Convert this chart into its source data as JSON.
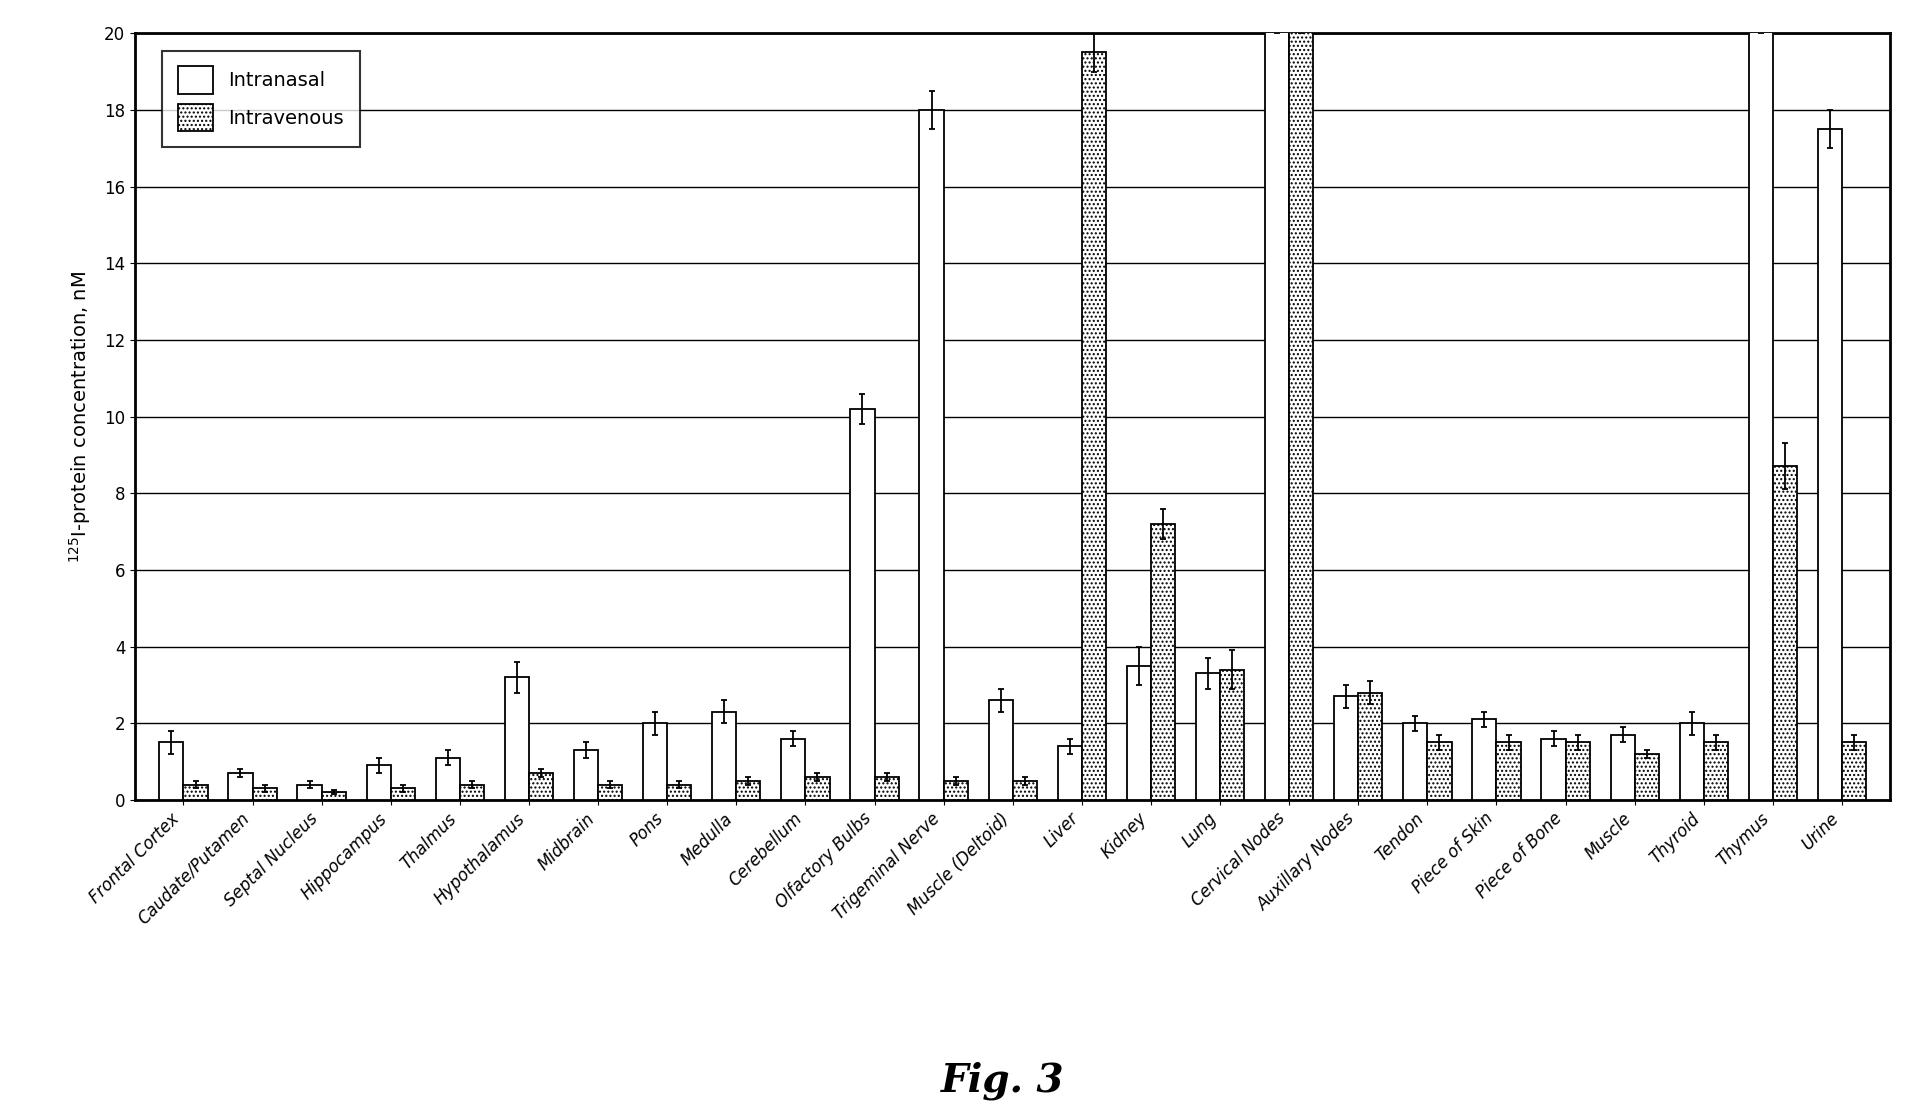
{
  "categories": [
    "Frontal Cortex",
    "Caudate/Putamen",
    "Septal Nucleus",
    "Hippocampus",
    "Thalmus",
    "Hypothalamus",
    "Midbrain",
    "Pons",
    "Medulla",
    "Cerebellum",
    "Olfactory Bulbs",
    "Trigeminal Nerve",
    "Muscle (Deltoid)",
    "Liver",
    "Kidney",
    "Lung",
    "Cervical Nodes",
    "Auxillary Nodes",
    "Tendon",
    "Piece of Skin",
    "Piece of Bone",
    "Muscle",
    "Thyroid",
    "Thymus",
    "Urine"
  ],
  "intranasal": [
    1.5,
    0.7,
    0.4,
    0.9,
    1.1,
    3.2,
    1.3,
    2.0,
    2.3,
    1.6,
    10.2,
    18.0,
    2.6,
    1.4,
    3.5,
    3.3,
    20.5,
    2.7,
    2.0,
    2.1,
    1.6,
    1.7,
    2.0,
    20.5,
    17.5
  ],
  "intravenous": [
    0.4,
    0.3,
    0.2,
    0.3,
    0.4,
    0.7,
    0.4,
    0.4,
    0.5,
    0.6,
    0.6,
    0.5,
    0.5,
    19.5,
    7.2,
    3.4,
    20.5,
    2.8,
    1.5,
    1.5,
    1.5,
    1.2,
    1.5,
    8.7,
    1.5
  ],
  "intranasal_err": [
    0.3,
    0.1,
    0.1,
    0.2,
    0.2,
    0.4,
    0.2,
    0.3,
    0.3,
    0.2,
    0.4,
    0.5,
    0.3,
    0.2,
    0.5,
    0.4,
    0.5,
    0.3,
    0.2,
    0.2,
    0.2,
    0.2,
    0.3,
    0.5,
    0.5
  ],
  "intravenous_err": [
    0.1,
    0.1,
    0.05,
    0.1,
    0.1,
    0.1,
    0.1,
    0.1,
    0.1,
    0.1,
    0.1,
    0.1,
    0.1,
    0.5,
    0.4,
    0.5,
    0.5,
    0.3,
    0.2,
    0.2,
    0.2,
    0.1,
    0.2,
    0.6,
    0.2
  ],
  "ylabel": "$^{125}$I-protein concentration, nM",
  "ylim": [
    0,
    20
  ],
  "yticks": [
    0,
    2,
    4,
    6,
    8,
    10,
    12,
    14,
    16,
    18,
    20
  ],
  "legend_intranasal": "Intranasal",
  "legend_intravenous": "Intravenous",
  "fig_label": "Fig. 3",
  "bar_width": 0.35,
  "bg_color": "#ffffff",
  "bar_edge_color": "#000000",
  "fig_label_fontsize": 28,
  "axis_fontsize": 14,
  "tick_fontsize": 12,
  "legend_fontsize": 14
}
